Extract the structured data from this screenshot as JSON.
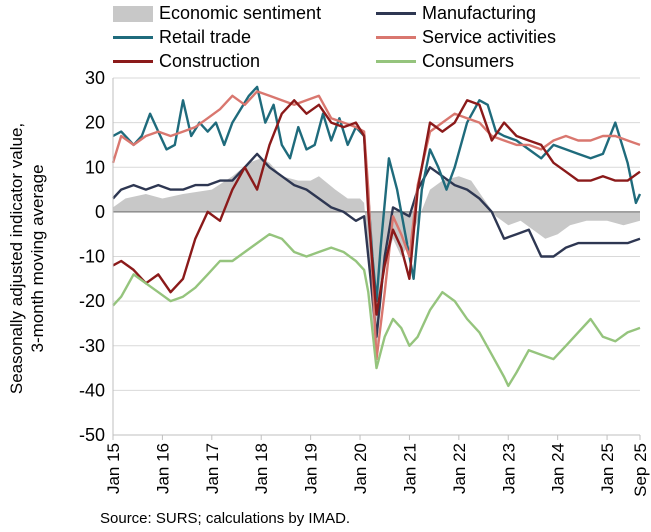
{
  "chart_data": {
    "type": "line",
    "ylabel": "Seasonally adjusted indicator value, 3-month moving average",
    "ylim": [
      -50,
      30
    ],
    "yticks": [
      30,
      20,
      10,
      0,
      -10,
      -20,
      -30,
      -40,
      -50
    ],
    "xlim": [
      "2015-01",
      "2025-09"
    ],
    "xticks": [
      "Jan 15",
      "Jan 16",
      "Jan 17",
      "Jan 18",
      "Jan 19",
      "Jan 20",
      "Jan 21",
      "Jan 22",
      "Jan 23",
      "Jan 24",
      "Jan 25",
      "Sep 25"
    ],
    "grid": true,
    "legend_position": "top",
    "source": "Source: SURS; calculations by IMAD.",
    "series": [
      {
        "name": "Economic sentiment",
        "kind": "area",
        "color": "#c8c8c8",
        "points": [
          [
            "2015-01",
            1
          ],
          [
            "2015-04",
            3
          ],
          [
            "2015-09",
            4
          ],
          [
            "2016-01",
            3
          ],
          [
            "2016-06",
            4
          ],
          [
            "2017-01",
            5
          ],
          [
            "2017-06",
            8
          ],
          [
            "2017-10",
            11
          ],
          [
            "2018-01",
            12
          ],
          [
            "2018-03",
            11
          ],
          [
            "2018-06",
            8
          ],
          [
            "2018-10",
            7
          ],
          [
            "2019-01",
            7
          ],
          [
            "2019-03",
            8
          ],
          [
            "2019-07",
            5
          ],
          [
            "2019-10",
            3
          ],
          [
            "2020-01",
            3
          ],
          [
            "2020-02",
            2
          ],
          [
            "2020-03",
            -10
          ],
          [
            "2020-04",
            -25
          ],
          [
            "2020-05",
            -31
          ],
          [
            "2020-06",
            -22
          ],
          [
            "2020-07",
            -12
          ],
          [
            "2020-09",
            -6
          ],
          [
            "2020-11",
            -10
          ],
          [
            "2021-01",
            -7
          ],
          [
            "2021-03",
            -2
          ],
          [
            "2021-06",
            5
          ],
          [
            "2021-09",
            7
          ],
          [
            "2022-01",
            8
          ],
          [
            "2022-04",
            7
          ],
          [
            "2022-07",
            3
          ],
          [
            "2022-10",
            -1
          ],
          [
            "2023-01",
            -3
          ],
          [
            "2023-04",
            -2
          ],
          [
            "2023-07",
            -4
          ],
          [
            "2023-10",
            -6
          ],
          [
            "2024-01",
            -5
          ],
          [
            "2024-04",
            -3
          ],
          [
            "2024-08",
            -2
          ],
          [
            "2025-01",
            -2
          ],
          [
            "2025-05",
            -3
          ],
          [
            "2025-09",
            -2
          ]
        ]
      },
      {
        "name": "Manufacturing",
        "color": "#2e3752",
        "points": [
          [
            "2015-01",
            3
          ],
          [
            "2015-03",
            5
          ],
          [
            "2015-06",
            6
          ],
          [
            "2015-09",
            5
          ],
          [
            "2015-12",
            6
          ],
          [
            "2016-03",
            5
          ],
          [
            "2016-06",
            5
          ],
          [
            "2016-09",
            6
          ],
          [
            "2016-12",
            6
          ],
          [
            "2017-03",
            7
          ],
          [
            "2017-06",
            7
          ],
          [
            "2017-09",
            10
          ],
          [
            "2017-12",
            13
          ],
          [
            "2018-03",
            10
          ],
          [
            "2018-06",
            8
          ],
          [
            "2018-09",
            6
          ],
          [
            "2018-12",
            5
          ],
          [
            "2019-03",
            3
          ],
          [
            "2019-06",
            1
          ],
          [
            "2019-09",
            0
          ],
          [
            "2019-12",
            -2
          ],
          [
            "2020-02",
            -1
          ],
          [
            "2020-03",
            -10
          ],
          [
            "2020-05",
            -28
          ],
          [
            "2020-07",
            -10
          ],
          [
            "2020-09",
            1
          ],
          [
            "2020-11",
            0
          ],
          [
            "2021-01",
            -1
          ],
          [
            "2021-03",
            5
          ],
          [
            "2021-06",
            10
          ],
          [
            "2021-09",
            8
          ],
          [
            "2021-12",
            6
          ],
          [
            "2022-03",
            5
          ],
          [
            "2022-06",
            3
          ],
          [
            "2022-09",
            0
          ],
          [
            "2022-12",
            -6
          ],
          [
            "2023-03",
            -5
          ],
          [
            "2023-06",
            -4
          ],
          [
            "2023-09",
            -10
          ],
          [
            "2023-12",
            -10
          ],
          [
            "2024-03",
            -8
          ],
          [
            "2024-06",
            -7
          ],
          [
            "2024-09",
            -7
          ],
          [
            "2024-12",
            -7
          ],
          [
            "2025-03",
            -7
          ],
          [
            "2025-06",
            -7
          ],
          [
            "2025-09",
            -6
          ]
        ]
      },
      {
        "name": "Retail trade",
        "color": "#1f6b7c",
        "points": [
          [
            "2015-01",
            17
          ],
          [
            "2015-03",
            18
          ],
          [
            "2015-06",
            15
          ],
          [
            "2015-08",
            17
          ],
          [
            "2015-10",
            22
          ],
          [
            "2015-12",
            18
          ],
          [
            "2016-02",
            14
          ],
          [
            "2016-04",
            15
          ],
          [
            "2016-06",
            25
          ],
          [
            "2016-08",
            17
          ],
          [
            "2016-10",
            20
          ],
          [
            "2016-12",
            18
          ],
          [
            "2017-02",
            20
          ],
          [
            "2017-04",
            15
          ],
          [
            "2017-06",
            20
          ],
          [
            "2017-08",
            23
          ],
          [
            "2017-10",
            26
          ],
          [
            "2017-12",
            28
          ],
          [
            "2018-02",
            20
          ],
          [
            "2018-04",
            24
          ],
          [
            "2018-06",
            15
          ],
          [
            "2018-08",
            12
          ],
          [
            "2018-10",
            19
          ],
          [
            "2018-12",
            14
          ],
          [
            "2019-02",
            15
          ],
          [
            "2019-04",
            22
          ],
          [
            "2019-06",
            16
          ],
          [
            "2019-08",
            21
          ],
          [
            "2019-10",
            15
          ],
          [
            "2019-12",
            19
          ],
          [
            "2020-01",
            18
          ],
          [
            "2020-02",
            17
          ],
          [
            "2020-04",
            -10
          ],
          [
            "2020-05",
            -20
          ],
          [
            "2020-06",
            -8
          ],
          [
            "2020-08",
            12
          ],
          [
            "2020-10",
            5
          ],
          [
            "2020-12",
            -5
          ],
          [
            "2021-02",
            -15
          ],
          [
            "2021-04",
            5
          ],
          [
            "2021-06",
            14
          ],
          [
            "2021-08",
            10
          ],
          [
            "2021-10",
            5
          ],
          [
            "2021-12",
            10
          ],
          [
            "2022-03",
            20
          ],
          [
            "2022-06",
            25
          ],
          [
            "2022-08",
            24
          ],
          [
            "2022-10",
            18
          ],
          [
            "2022-12",
            17
          ],
          [
            "2023-03",
            16
          ],
          [
            "2023-06",
            14
          ],
          [
            "2023-09",
            12
          ],
          [
            "2023-12",
            15
          ],
          [
            "2024-03",
            14
          ],
          [
            "2024-06",
            13
          ],
          [
            "2024-09",
            12
          ],
          [
            "2024-12",
            13
          ],
          [
            "2025-03",
            20
          ],
          [
            "2025-06",
            11
          ],
          [
            "2025-08",
            2
          ],
          [
            "2025-09",
            4
          ]
        ]
      },
      {
        "name": "Service activities",
        "color": "#d9776f",
        "points": [
          [
            "2015-01",
            11
          ],
          [
            "2015-03",
            17
          ],
          [
            "2015-06",
            15
          ],
          [
            "2015-09",
            17
          ],
          [
            "2015-12",
            18
          ],
          [
            "2016-03",
            17
          ],
          [
            "2016-06",
            18
          ],
          [
            "2016-09",
            19
          ],
          [
            "2016-12",
            21
          ],
          [
            "2017-03",
            23
          ],
          [
            "2017-06",
            26
          ],
          [
            "2017-09",
            24
          ],
          [
            "2017-12",
            27
          ],
          [
            "2018-03",
            26
          ],
          [
            "2018-06",
            25
          ],
          [
            "2018-09",
            24
          ],
          [
            "2018-12",
            25
          ],
          [
            "2019-03",
            26
          ],
          [
            "2019-06",
            21
          ],
          [
            "2019-09",
            20
          ],
          [
            "2019-12",
            19
          ],
          [
            "2020-02",
            18
          ],
          [
            "2020-03",
            5
          ],
          [
            "2020-05",
            -33
          ],
          [
            "2020-07",
            -18
          ],
          [
            "2020-09",
            -1
          ],
          [
            "2020-11",
            -5
          ],
          [
            "2021-01",
            -10
          ],
          [
            "2021-03",
            6
          ],
          [
            "2021-06",
            18
          ],
          [
            "2021-09",
            20
          ],
          [
            "2021-12",
            22
          ],
          [
            "2022-03",
            21
          ],
          [
            "2022-06",
            20
          ],
          [
            "2022-09",
            17
          ],
          [
            "2022-12",
            16
          ],
          [
            "2023-03",
            15
          ],
          [
            "2023-06",
            15
          ],
          [
            "2023-09",
            14
          ],
          [
            "2023-12",
            16
          ],
          [
            "2024-03",
            17
          ],
          [
            "2024-06",
            16
          ],
          [
            "2024-09",
            16
          ],
          [
            "2024-12",
            17
          ],
          [
            "2025-03",
            17
          ],
          [
            "2025-06",
            16
          ],
          [
            "2025-09",
            15
          ]
        ]
      },
      {
        "name": "Construction",
        "color": "#8b1a1a",
        "points": [
          [
            "2015-01",
            -12
          ],
          [
            "2015-03",
            -11
          ],
          [
            "2015-06",
            -13
          ],
          [
            "2015-09",
            -16
          ],
          [
            "2015-12",
            -14
          ],
          [
            "2016-03",
            -18
          ],
          [
            "2016-06",
            -15
          ],
          [
            "2016-09",
            -6
          ],
          [
            "2016-12",
            0
          ],
          [
            "2017-03",
            -2
          ],
          [
            "2017-06",
            5
          ],
          [
            "2017-09",
            10
          ],
          [
            "2017-12",
            5
          ],
          [
            "2018-03",
            15
          ],
          [
            "2018-06",
            22
          ],
          [
            "2018-09",
            25
          ],
          [
            "2018-12",
            22
          ],
          [
            "2019-03",
            24
          ],
          [
            "2019-06",
            20
          ],
          [
            "2019-09",
            19
          ],
          [
            "2019-12",
            20
          ],
          [
            "2020-02",
            17
          ],
          [
            "2020-03",
            0
          ],
          [
            "2020-05",
            -23
          ],
          [
            "2020-07",
            -12
          ],
          [
            "2020-09",
            -4
          ],
          [
            "2020-11",
            -8
          ],
          [
            "2021-01",
            -15
          ],
          [
            "2021-03",
            5
          ],
          [
            "2021-06",
            20
          ],
          [
            "2021-09",
            18
          ],
          [
            "2021-12",
            20
          ],
          [
            "2022-03",
            25
          ],
          [
            "2022-06",
            24
          ],
          [
            "2022-09",
            16
          ],
          [
            "2022-12",
            20
          ],
          [
            "2023-03",
            17
          ],
          [
            "2023-06",
            16
          ],
          [
            "2023-09",
            15
          ],
          [
            "2023-12",
            11
          ],
          [
            "2024-03",
            9
          ],
          [
            "2024-06",
            7
          ],
          [
            "2024-09",
            7
          ],
          [
            "2024-12",
            8
          ],
          [
            "2025-03",
            7
          ],
          [
            "2025-06",
            7
          ],
          [
            "2025-09",
            9
          ]
        ]
      },
      {
        "name": "Consumers",
        "color": "#95c47d",
        "points": [
          [
            "2015-01",
            -21
          ],
          [
            "2015-03",
            -19
          ],
          [
            "2015-06",
            -14
          ],
          [
            "2015-09",
            -16
          ],
          [
            "2015-12",
            -18
          ],
          [
            "2016-03",
            -20
          ],
          [
            "2016-06",
            -19
          ],
          [
            "2016-09",
            -17
          ],
          [
            "2016-12",
            -14
          ],
          [
            "2017-03",
            -11
          ],
          [
            "2017-06",
            -11
          ],
          [
            "2017-09",
            -9
          ],
          [
            "2017-12",
            -7
          ],
          [
            "2018-03",
            -5
          ],
          [
            "2018-06",
            -6
          ],
          [
            "2018-09",
            -9
          ],
          [
            "2018-12",
            -10
          ],
          [
            "2019-03",
            -9
          ],
          [
            "2019-06",
            -8
          ],
          [
            "2019-09",
            -9
          ],
          [
            "2019-12",
            -11
          ],
          [
            "2020-02",
            -13
          ],
          [
            "2020-03",
            -18
          ],
          [
            "2020-05",
            -35
          ],
          [
            "2020-07",
            -28
          ],
          [
            "2020-09",
            -24
          ],
          [
            "2020-11",
            -26
          ],
          [
            "2021-01",
            -30
          ],
          [
            "2021-03",
            -28
          ],
          [
            "2021-06",
            -22
          ],
          [
            "2021-09",
            -18
          ],
          [
            "2021-12",
            -20
          ],
          [
            "2022-03",
            -24
          ],
          [
            "2022-06",
            -27
          ],
          [
            "2022-09",
            -32
          ],
          [
            "2022-12",
            -37
          ],
          [
            "2023-01",
            -39
          ],
          [
            "2023-03",
            -36
          ],
          [
            "2023-06",
            -31
          ],
          [
            "2023-09",
            -32
          ],
          [
            "2023-12",
            -33
          ],
          [
            "2024-03",
            -30
          ],
          [
            "2024-06",
            -27
          ],
          [
            "2024-09",
            -24
          ],
          [
            "2024-12",
            -28
          ],
          [
            "2025-03",
            -29
          ],
          [
            "2025-06",
            -27
          ],
          [
            "2025-09",
            -26
          ]
        ]
      }
    ]
  }
}
